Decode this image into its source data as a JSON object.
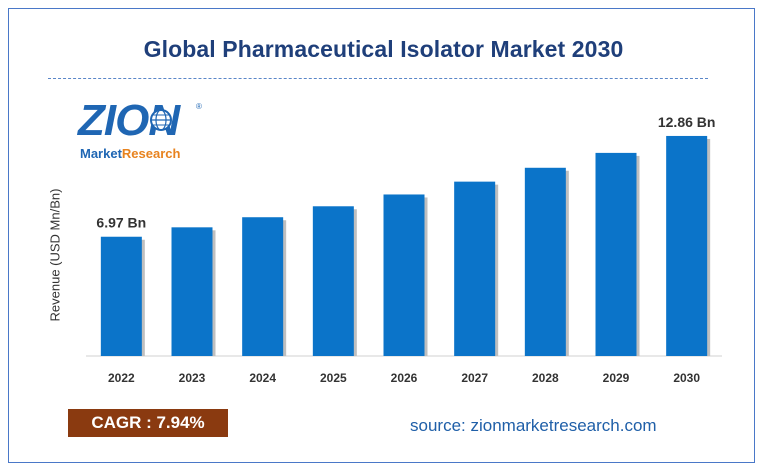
{
  "header": {
    "title": "Global Pharmaceutical Isolator Market 2030"
  },
  "logo": {
    "word": "ZION",
    "registered": "®",
    "sub_market": "Market",
    "sub_research": "Research"
  },
  "chart_data": {
    "type": "bar",
    "title": "Global Pharmaceutical Isolator Market 2030",
    "ylabel": "Revenue (USD Mn/Bn)",
    "xlabel": "",
    "categories": [
      "2022",
      "2023",
      "2024",
      "2025",
      "2026",
      "2027",
      "2028",
      "2029",
      "2030"
    ],
    "values": [
      6.97,
      7.52,
      8.11,
      8.75,
      9.44,
      10.19,
      11.0,
      11.87,
      12.86
    ],
    "data_labels": [
      {
        "index": 0,
        "text": "6.97 Bn"
      },
      {
        "index": 8,
        "text": "12.86 Bn"
      }
    ],
    "ylim": [
      0,
      13.5
    ],
    "grid": false,
    "bar_color": "#0b74c9"
  },
  "footer": {
    "cagr": "CAGR : 7.94%",
    "source": "source: zionmarketresearch.com"
  },
  "colors": {
    "title": "#1f3f7a",
    "cagr_bg": "#8a3a10",
    "source": "#1f5fa8",
    "border": "#4a78c8"
  }
}
